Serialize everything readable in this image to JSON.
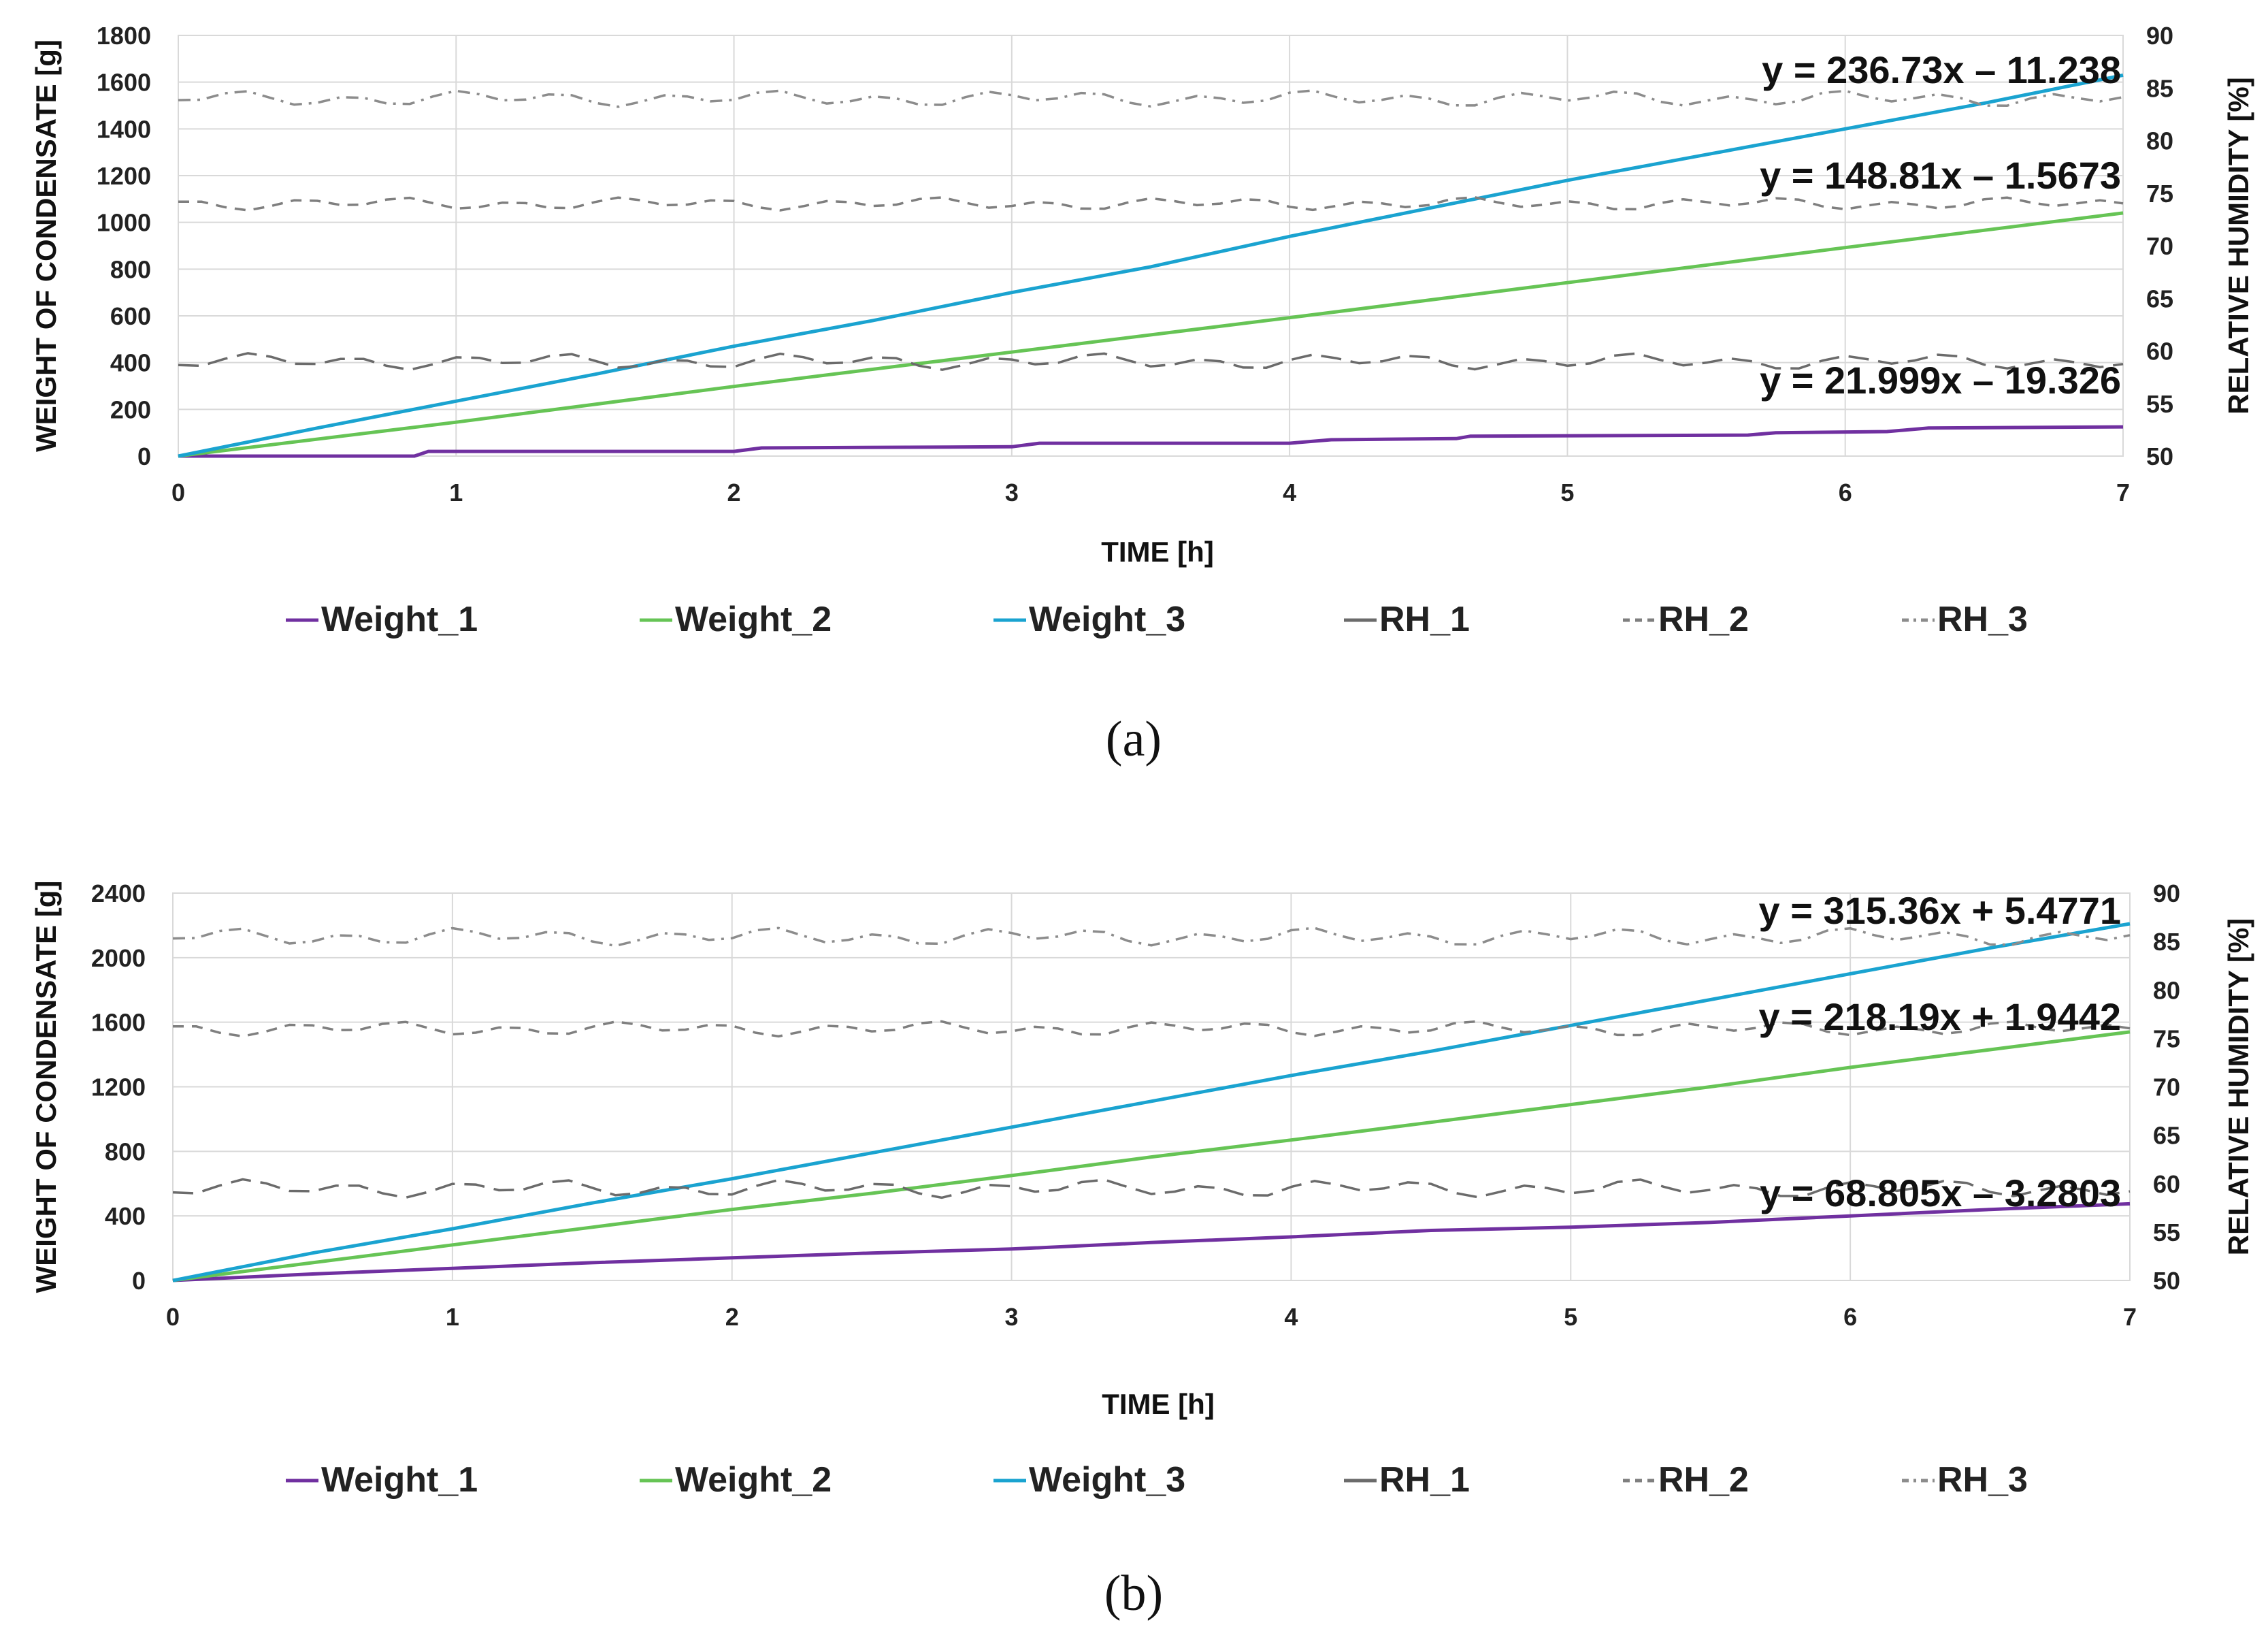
{
  "chart_data": [
    {
      "type": "line",
      "panel_label": "(a)",
      "xlabel": "TIME  [h]",
      "ylabel": "WEIGHT OF CONDENSATE [g]",
      "y2label": "RELATIVE HUMIDITY [%]",
      "xlim": [
        0,
        7
      ],
      "ylim": [
        0,
        1800
      ],
      "y2lim": [
        50,
        90
      ],
      "xticks": [
        0,
        1,
        2,
        3,
        4,
        5,
        6,
        7
      ],
      "yticks": [
        0,
        200,
        400,
        600,
        800,
        1000,
        1200,
        1400,
        1600,
        1800
      ],
      "y2ticks": [
        50,
        55,
        60,
        65,
        70,
        75,
        80,
        85,
        90
      ],
      "grid": true,
      "legend_position": "bottom",
      "equations": [
        {
          "text": "y = 236.73x – 11.238",
          "series": "Weight_3"
        },
        {
          "text": "y = 148.81x – 1.5673",
          "series": "Weight_2"
        },
        {
          "text": "y = 21.999x – 19.326",
          "series": "Weight_1"
        }
      ],
      "series": [
        {
          "name": "Weight_1",
          "axis": "left",
          "color": "#7030a0",
          "dash": "solid",
          "x": [
            0,
            0.85,
            0.9,
            2.0,
            2.1,
            3.0,
            3.1,
            4.0,
            4.15,
            4.6,
            4.65,
            5.65,
            5.75,
            6.15,
            6.3,
            7.0
          ],
          "y": [
            0,
            0,
            20,
            20,
            35,
            40,
            55,
            55,
            70,
            75,
            85,
            90,
            100,
            105,
            120,
            125
          ]
        },
        {
          "name": "Weight_2",
          "axis": "left",
          "color": "#66c455",
          "dash": "solid",
          "x": [
            0,
            1,
            2,
            3,
            4,
            5,
            6,
            7
          ],
          "y": [
            0,
            145,
            298,
            445,
            592,
            742,
            892,
            1040
          ]
        },
        {
          "name": "Weight_3",
          "axis": "left",
          "color": "#1aa3d0",
          "dash": "solid",
          "x": [
            0,
            0.5,
            1,
            1.5,
            2,
            2.5,
            3,
            3.5,
            4,
            4.5,
            5,
            5.5,
            6,
            6.5,
            7
          ],
          "y": [
            0,
            120,
            235,
            350,
            470,
            580,
            700,
            810,
            940,
            1060,
            1180,
            1290,
            1400,
            1510,
            1630
          ]
        },
        {
          "name": "RH_1",
          "axis": "right",
          "color": "#6b6b6b",
          "dash": "long-dash",
          "mean": 59,
          "amplitude": 0.5
        },
        {
          "name": "RH_2",
          "axis": "right",
          "color": "#7f7f7f",
          "dash": "dash",
          "mean": 74,
          "amplitude": 0.4
        },
        {
          "name": "RH_3",
          "axis": "right",
          "color": "#8c8c8c",
          "dash": "dash-dot",
          "mean": 84,
          "amplitude": 0.5
        }
      ]
    },
    {
      "type": "line",
      "panel_label": "(b)",
      "xlabel": "TIME [h]",
      "ylabel": "WEIGHT OF CONDENSATE [g]",
      "y2label": "RELATIVE HUMIDITY [%]",
      "xlim": [
        0,
        7
      ],
      "ylim": [
        0,
        2400
      ],
      "y2lim": [
        50,
        90
      ],
      "xticks": [
        0,
        1,
        2,
        3,
        4,
        5,
        6,
        7
      ],
      "yticks": [
        0,
        400,
        800,
        1200,
        1600,
        2000,
        2400
      ],
      "y2ticks": [
        50,
        55,
        60,
        65,
        70,
        75,
        80,
        85,
        90
      ],
      "grid": true,
      "legend_position": "bottom",
      "equations": [
        {
          "text": "y = 315.36x + 5.4771",
          "series": "Weight_3"
        },
        {
          "text": "y = 218.19x + 1.9442",
          "series": "Weight_2"
        },
        {
          "text": "y = 68.805x – 3.2803",
          "series": "Weight_1"
        }
      ],
      "series": [
        {
          "name": "Weight_1",
          "axis": "left",
          "color": "#7030a0",
          "dash": "solid",
          "x": [
            0,
            0.5,
            1,
            1.5,
            2,
            2.5,
            3,
            3.5,
            4,
            4.5,
            5,
            5.5,
            6,
            6.5,
            7
          ],
          "y": [
            0,
            40,
            75,
            110,
            140,
            170,
            195,
            235,
            270,
            310,
            330,
            360,
            400,
            440,
            475
          ]
        },
        {
          "name": "Weight_2",
          "axis": "left",
          "color": "#66c455",
          "dash": "solid",
          "x": [
            0,
            0.5,
            1,
            1.5,
            2,
            2.5,
            3,
            3.5,
            4,
            4.5,
            5,
            5.5,
            6,
            6.5,
            7
          ],
          "y": [
            0,
            110,
            220,
            330,
            440,
            540,
            650,
            765,
            870,
            980,
            1090,
            1200,
            1320,
            1430,
            1540
          ]
        },
        {
          "name": "Weight_3",
          "axis": "left",
          "color": "#1aa3d0",
          "dash": "solid",
          "x": [
            0,
            0.5,
            1,
            1.5,
            2,
            2.5,
            3,
            3.5,
            4,
            4.5,
            5,
            5.5,
            6,
            6.5,
            7
          ],
          "y": [
            0,
            170,
            320,
            480,
            630,
            790,
            950,
            1110,
            1270,
            1420,
            1580,
            1740,
            1900,
            2060,
            2210
          ]
        },
        {
          "name": "RH_1",
          "axis": "right",
          "color": "#6b6b6b",
          "dash": "long-dash",
          "mean": 59.5,
          "amplitude": 0.6
        },
        {
          "name": "RH_2",
          "axis": "right",
          "color": "#7f7f7f",
          "dash": "dash",
          "mean": 76,
          "amplitude": 0.5
        },
        {
          "name": "RH_3",
          "axis": "right",
          "color": "#8c8c8c",
          "dash": "dash-dot",
          "mean": 85.5,
          "amplitude": 0.6
        }
      ]
    }
  ]
}
